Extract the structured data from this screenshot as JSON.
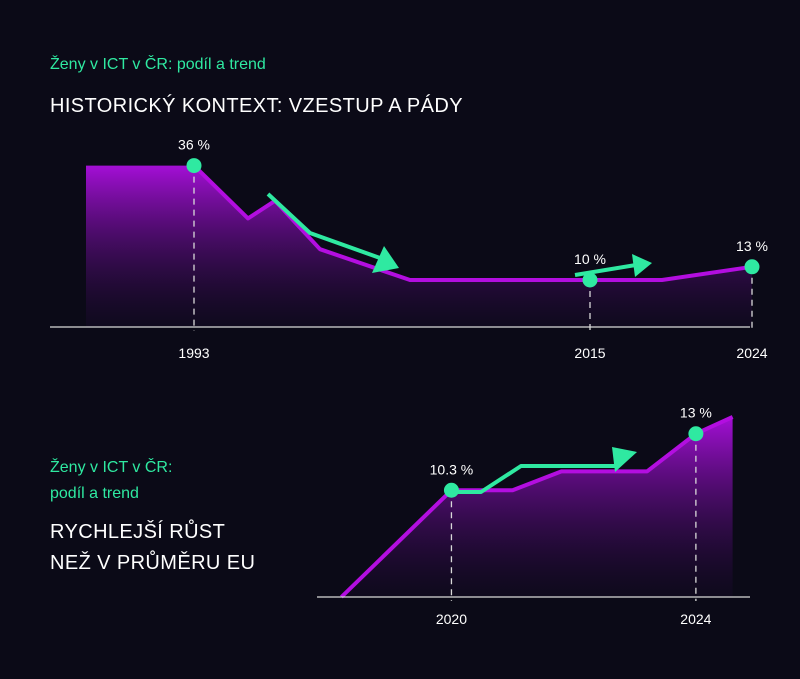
{
  "colors": {
    "background": "#0b0a17",
    "line": "#b30ee0",
    "marker": "#2fe9a1",
    "arrow": "#2fe9a1",
    "axis": "#d9d9d9"
  },
  "top": {
    "subtitle": "Ženy v ICT v ČR: podíl a trend",
    "title": "HISTORICKÝ KONTEXT: VZESTUP A PÁDY"
  },
  "bottom": {
    "subtitle_line1": "Ženy v ICT v ČR:",
    "subtitle_line2": "podíl a trend",
    "title_line1": "RYCHLEJŠÍ RŮST",
    "title_line2": "NEŽ V PRŮMĚRU EU"
  },
  "chart_data": [
    {
      "type": "area",
      "x": [
        1987,
        1993,
        1996,
        1997.5,
        2000,
        2005,
        2015,
        2019,
        2024
      ],
      "values": [
        36,
        36,
        24,
        28,
        17,
        10,
        10,
        10,
        13
      ],
      "xticks": [
        "1993",
        "2015",
        "2024"
      ],
      "xlim": [
        1985,
        2025
      ],
      "ylim": [
        0,
        40
      ],
      "data_labels": [
        {
          "x": 1993,
          "y": 36,
          "text": "36 %"
        },
        {
          "x": 2015,
          "y": 10,
          "text": "10 %"
        },
        {
          "x": 2024,
          "y": 13,
          "text": "13 %"
        }
      ],
      "trend_arrows": [
        "down",
        "up"
      ],
      "grid": false
    },
    {
      "type": "area",
      "x": [
        2018.2,
        2020,
        2021,
        2021.8,
        2023.2,
        2024,
        2024.6
      ],
      "values": [
        5.2,
        10.3,
        10.3,
        11.2,
        11.2,
        13,
        13.8
      ],
      "xticks": [
        "2020",
        "2024"
      ],
      "xlim": [
        2017.8,
        2025
      ],
      "ylim": [
        5.2,
        13.8
      ],
      "data_labels": [
        {
          "x": 2020,
          "y": 10.3,
          "text": "10.3 %"
        },
        {
          "x": 2024,
          "y": 13,
          "text": "13 %"
        }
      ],
      "trend_arrows": [
        "up"
      ],
      "grid": false
    }
  ]
}
